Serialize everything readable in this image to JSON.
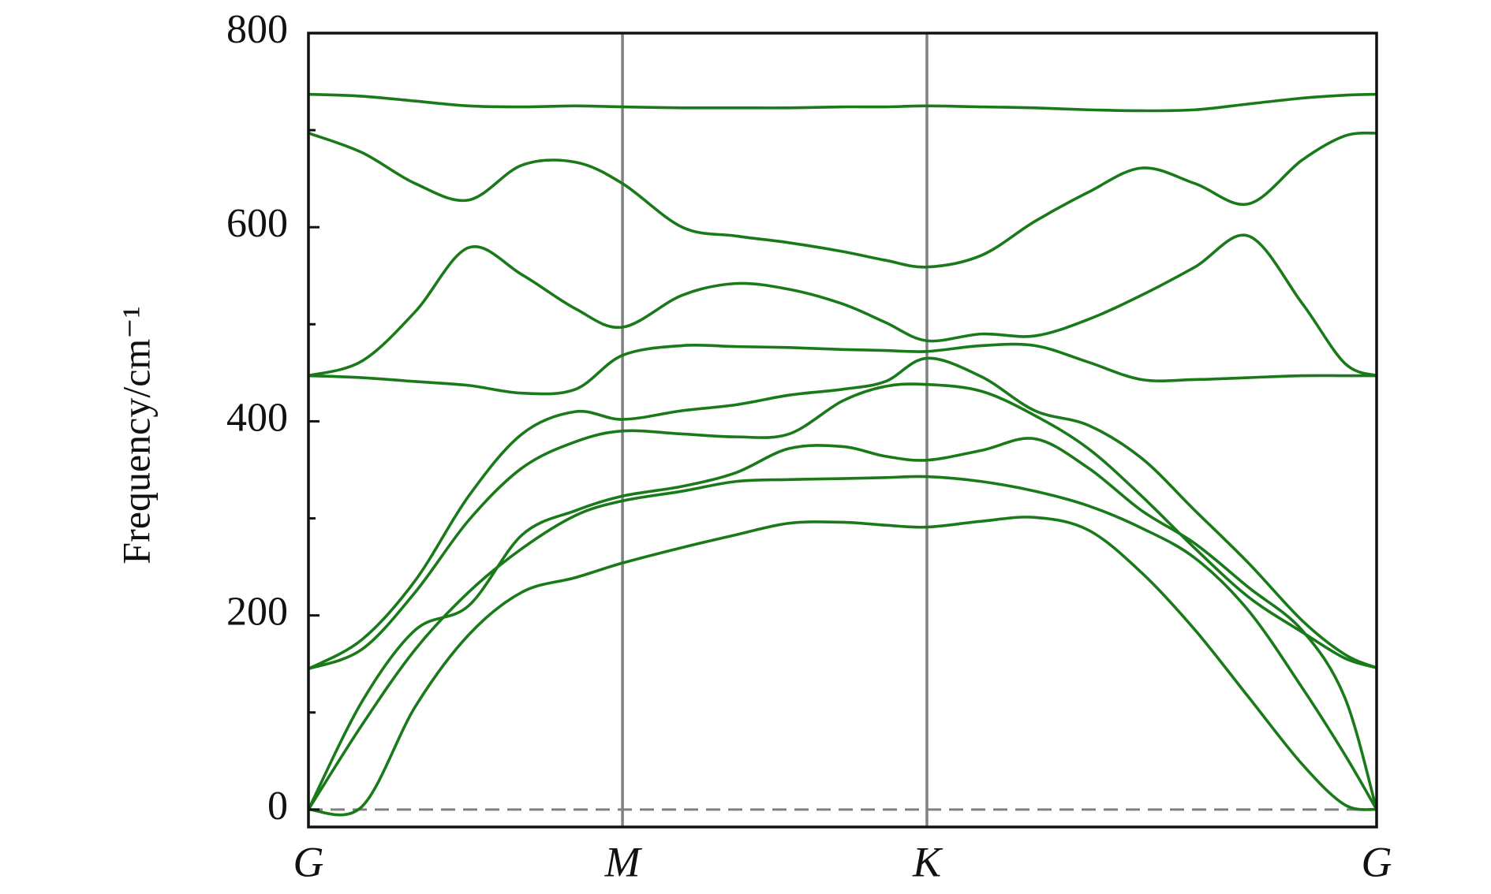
{
  "chart_data": {
    "type": "line",
    "y_label": "Frequency/cm⁻¹",
    "x": [
      0,
      0.05,
      0.1,
      0.15,
      0.2,
      0.25,
      0.294,
      0.35,
      0.4,
      0.45,
      0.5,
      0.54,
      0.579,
      0.63,
      0.68,
      0.73,
      0.78,
      0.83,
      0.88,
      0.93,
      0.97,
      1.0
    ],
    "series": [
      {
        "color": "#1a7a1a",
        "values": [
          0,
          3,
          106,
          180,
          224,
          239,
          254,
          270,
          283,
          295,
          296,
          293,
          291,
          297,
          301,
          288,
          244,
          185,
          116,
          47,
          5,
          0
        ]
      },
      {
        "color": "#1a7a1a",
        "values": [
          0,
          87,
          165,
          224,
          269,
          303,
          318,
          328,
          338,
          340,
          341,
          342,
          343,
          338,
          328,
          313,
          290,
          259,
          205,
          126,
          57,
          0
        ]
      },
      {
        "color": "#1a7a1a",
        "values": [
          0,
          111,
          185,
          210,
          283,
          308,
          323,
          333,
          347,
          372,
          374,
          364,
          360,
          370,
          382,
          352,
          308,
          274,
          229,
          185,
          116,
          0
        ]
      },
      {
        "color": "#1a7a1a",
        "values": [
          145,
          165,
          224,
          298,
          352,
          379,
          390,
          387,
          384,
          387,
          421,
          436,
          438,
          431,
          406,
          372,
          323,
          269,
          219,
          183,
          156,
          146
        ]
      },
      {
        "color": "#1a7a1a",
        "values": [
          145,
          175,
          236,
          323,
          387,
          410,
          402,
          411,
          417,
          427,
          433,
          441,
          465,
          446,
          411,
          396,
          362,
          308,
          254,
          195,
          160,
          146
        ]
      },
      {
        "color": "#1a7a1a",
        "values": [
          447,
          445,
          441,
          437,
          429,
          433,
          468,
          478,
          477,
          476,
          474,
          473,
          472,
          478,
          478,
          461,
          443,
          443,
          445,
          447,
          447,
          447
        ]
      },
      {
        "color": "#1a7a1a",
        "values": [
          447,
          462,
          513,
          579,
          551,
          516,
          497,
          530,
          542,
          536,
          521,
          502,
          483,
          490,
          488,
          505,
          530,
          559,
          591,
          522,
          460,
          447
        ]
      },
      {
        "color": "#1a7a1a",
        "values": [
          697,
          677,
          645,
          628,
          664,
          667,
          645,
          600,
          591,
          584,
          575,
          566,
          559,
          571,
          606,
          636,
          661,
          645,
          624,
          669,
          694,
          697
        ]
      },
      {
        "color": "#1a7a1a",
        "values": [
          737,
          735,
          730,
          725,
          724,
          725,
          724,
          723,
          723,
          723,
          724,
          724,
          725,
          724,
          723,
          721,
          720,
          721,
          727,
          733,
          736,
          737
        ]
      }
    ],
    "xlim": [
      0,
      1
    ],
    "xticks": [
      {
        "value": 0,
        "label": "G"
      },
      {
        "value": 0.294,
        "label": "M"
      },
      {
        "value": 0.579,
        "label": "K"
      },
      {
        "value": 1,
        "label": "G"
      }
    ],
    "ylim": [
      -18,
      800
    ],
    "yticks": [
      0,
      200,
      400,
      600,
      800
    ],
    "yminor_ticks": [
      100,
      300,
      500,
      700
    ],
    "reference_line": 0
  }
}
